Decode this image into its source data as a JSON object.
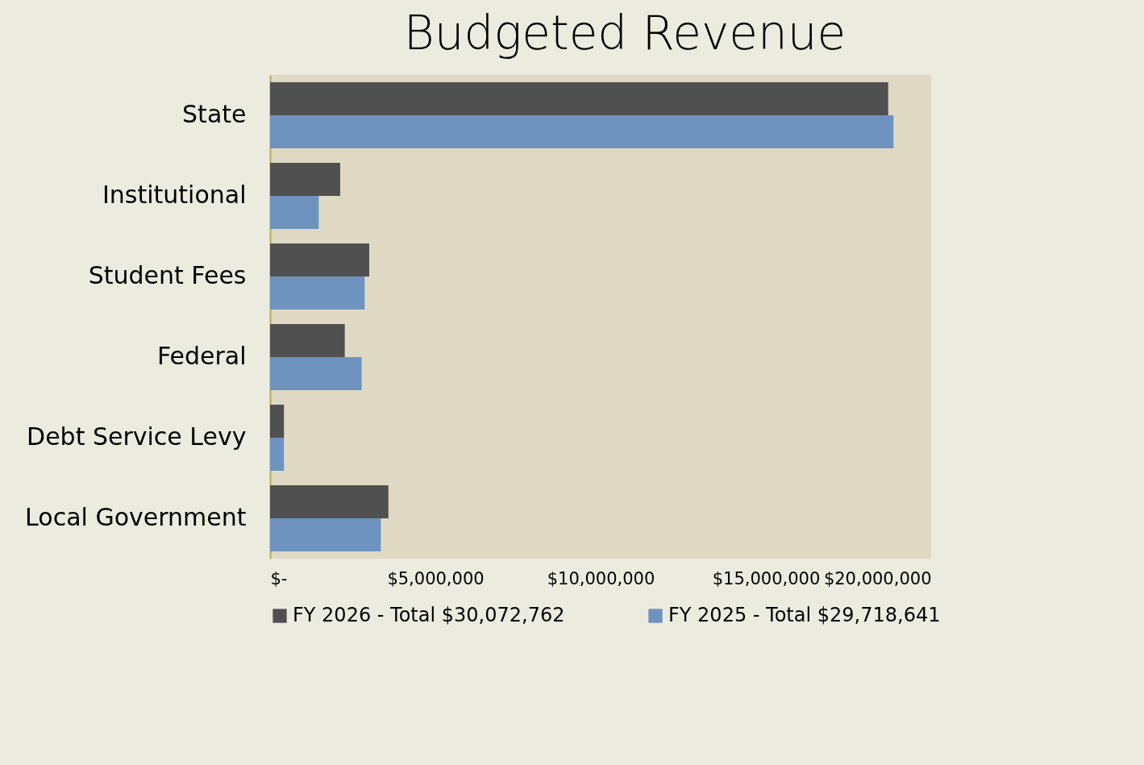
{
  "chart_data": {
    "type": "bar",
    "title": "Budgeted Revenue",
    "orientation": "horizontal",
    "categories": [
      "State",
      "Institutional",
      "Student Fees",
      "Federal",
      "Debt Service Levy",
      "Local Government"
    ],
    "series": [
      {
        "name": "FY 2026 - Total $30,072,762",
        "color": "#505050",
        "values": [
          18700000,
          2120000,
          3000000,
          2260000,
          420000,
          3580000
        ]
      },
      {
        "name": "FY 2025 - Total $29,718,641",
        "color": "#6e93bf",
        "values": [
          18860000,
          1470000,
          2860000,
          2770000,
          420000,
          3350000
        ]
      }
    ],
    "xlim": [
      0,
      20000000
    ],
    "xticks": [
      {
        "value": 0,
        "label": "$-"
      },
      {
        "value": 5000000,
        "label": "$5,000,000"
      },
      {
        "value": 10000000,
        "label": "$10,000,000"
      },
      {
        "value": 15000000,
        "label": "$15,000,000"
      },
      {
        "value": 20000000,
        "label": "$20,000,000"
      }
    ],
    "legend": "bottom",
    "grid": false
  }
}
